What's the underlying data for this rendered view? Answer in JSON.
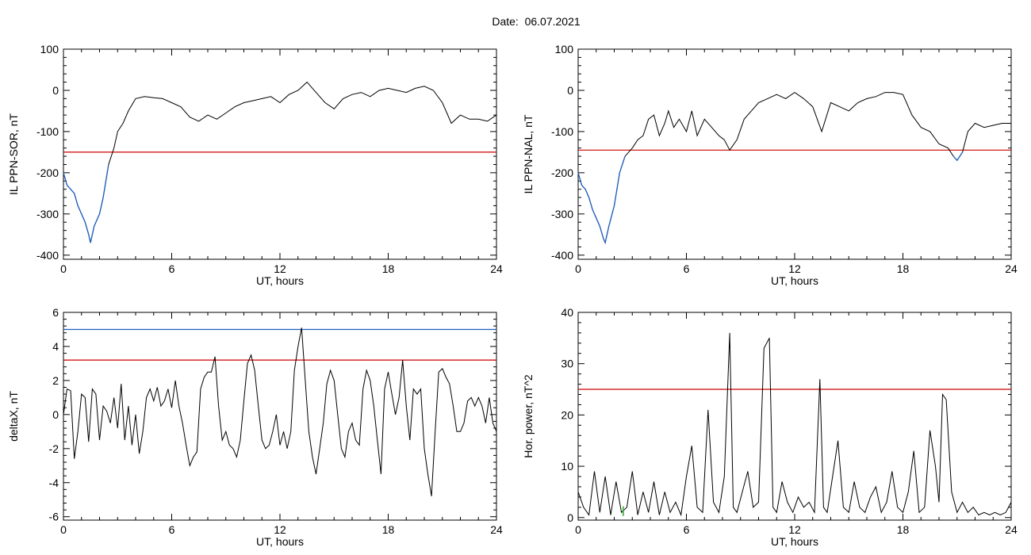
{
  "title": "Date:  06.07.2021",
  "colors": {
    "line": "#000000",
    "threshold_red": "#cc0000",
    "threshold_blue": "#1f5fbf",
    "low_segment": "#1f5fbf",
    "marker_green": "#22aa22"
  },
  "chart_data": [
    {
      "id": "sor",
      "type": "line",
      "xlabel": "UT, hours",
      "ylabel": "IL PPN-SOR, nT",
      "xlim": [
        0,
        24
      ],
      "ylim": [
        -410,
        100
      ],
      "xticks": [
        0,
        6,
        12,
        18,
        24
      ],
      "yticks": [
        100,
        0,
        -100,
        -200,
        -300,
        -400
      ],
      "threshold": -150,
      "series": [
        {
          "values_x": [
            0,
            0.2,
            0.4,
            0.6,
            0.8,
            1.0,
            1.2,
            1.4,
            1.5,
            1.7,
            2.0,
            2.2,
            2.5,
            2.8,
            3.0,
            3.3,
            3.6,
            4.0,
            4.5,
            5.0,
            5.5,
            6.0,
            6.5,
            7.0,
            7.5,
            8.0,
            8.5,
            9.0,
            9.5,
            10.0,
            10.5,
            11.0,
            11.5,
            12.0,
            12.5,
            13.0,
            13.5,
            14.0,
            14.5,
            15.0,
            15.5,
            16.0,
            16.5,
            17.0,
            17.5,
            18.0,
            18.5,
            19.0,
            19.5,
            20.0,
            20.5,
            21.0,
            21.5,
            22.0,
            22.5,
            23.0,
            23.5,
            24.0
          ],
          "values_y": [
            -200,
            -230,
            -240,
            -250,
            -280,
            -300,
            -320,
            -350,
            -370,
            -330,
            -300,
            -260,
            -180,
            -140,
            -100,
            -80,
            -50,
            -20,
            -15,
            -18,
            -20,
            -30,
            -40,
            -65,
            -75,
            -60,
            -70,
            -55,
            -40,
            -30,
            -25,
            -20,
            -15,
            -30,
            -10,
            0,
            20,
            -5,
            -30,
            -45,
            -20,
            -10,
            -5,
            -15,
            0,
            5,
            0,
            -5,
            5,
            10,
            0,
            -30,
            -80,
            -60,
            -70,
            -70,
            -75,
            -60
          ]
        }
      ]
    },
    {
      "id": "nal",
      "type": "line",
      "xlabel": "UT, hours",
      "ylabel": "IL PPN-NAL, nT",
      "xlim": [
        0,
        24
      ],
      "ylim": [
        -410,
        100
      ],
      "xticks": [
        0,
        6,
        12,
        18,
        24
      ],
      "yticks": [
        100,
        0,
        -100,
        -200,
        -300,
        -400
      ],
      "threshold": -145,
      "series": [
        {
          "values_x": [
            0,
            0.2,
            0.4,
            0.6,
            0.8,
            1.0,
            1.2,
            1.4,
            1.5,
            1.7,
            2.0,
            2.3,
            2.6,
            3.0,
            3.3,
            3.6,
            3.9,
            4.2,
            4.5,
            4.8,
            5.0,
            5.3,
            5.6,
            6.0,
            6.3,
            6.6,
            7.0,
            7.4,
            7.8,
            8.1,
            8.4,
            8.8,
            9.2,
            9.6,
            10.0,
            10.5,
            11.0,
            11.5,
            12.0,
            12.5,
            13.0,
            13.5,
            14.0,
            14.5,
            15.0,
            15.5,
            16.0,
            16.5,
            17.0,
            17.5,
            18.0,
            18.5,
            19.0,
            19.5,
            20.0,
            20.5,
            20.8,
            21.0,
            21.3,
            21.6,
            22.0,
            22.5,
            23.0,
            23.5,
            24.0
          ],
          "values_y": [
            -200,
            -230,
            -240,
            -260,
            -290,
            -310,
            -330,
            -360,
            -370,
            -330,
            -280,
            -200,
            -160,
            -140,
            -120,
            -110,
            -70,
            -60,
            -110,
            -80,
            -50,
            -90,
            -70,
            -100,
            -50,
            -110,
            -70,
            -90,
            -110,
            -120,
            -145,
            -120,
            -70,
            -50,
            -30,
            -20,
            -10,
            -20,
            -5,
            -20,
            -40,
            -100,
            -30,
            -40,
            -50,
            -30,
            -20,
            -15,
            -5,
            -5,
            -10,
            -60,
            -90,
            -100,
            -130,
            -140,
            -160,
            -170,
            -150,
            -100,
            -80,
            -90,
            -85,
            -80,
            -80
          ]
        }
      ]
    },
    {
      "id": "deltax",
      "type": "line",
      "xlabel": "UT, hours",
      "ylabel": "deltaX, nT",
      "xlim": [
        0,
        24
      ],
      "ylim": [
        -6.2,
        6
      ],
      "xticks": [
        0,
        6,
        12,
        18,
        24
      ],
      "yticks": [
        6,
        4,
        2,
        0,
        -2,
        -4,
        -6
      ],
      "threshold": 3.2,
      "threshold_upper": 5.0,
      "series": [
        {
          "values_x": [
            0,
            0.2,
            0.4,
            0.6,
            0.8,
            1.0,
            1.2,
            1.4,
            1.6,
            1.8,
            2.0,
            2.2,
            2.4,
            2.6,
            2.8,
            3.0,
            3.2,
            3.4,
            3.6,
            3.8,
            4.0,
            4.2,
            4.4,
            4.6,
            4.8,
            5.0,
            5.2,
            5.4,
            5.6,
            5.8,
            6.0,
            6.2,
            6.4,
            6.6,
            6.8,
            7.0,
            7.2,
            7.4,
            7.6,
            7.8,
            8.0,
            8.2,
            8.4,
            8.6,
            8.8,
            9.0,
            9.2,
            9.4,
            9.6,
            9.8,
            10.0,
            10.2,
            10.4,
            10.6,
            10.8,
            11.0,
            11.2,
            11.4,
            11.6,
            11.8,
            12.0,
            12.2,
            12.4,
            12.6,
            12.8,
            13.0,
            13.2,
            13.4,
            13.6,
            13.8,
            14.0,
            14.2,
            14.4,
            14.6,
            14.8,
            15.0,
            15.2,
            15.4,
            15.6,
            15.8,
            16.0,
            16.2,
            16.4,
            16.6,
            16.8,
            17.0,
            17.2,
            17.4,
            17.6,
            17.8,
            18.0,
            18.2,
            18.4,
            18.6,
            18.8,
            19.0,
            19.2,
            19.4,
            19.6,
            19.8,
            20.0,
            20.2,
            20.4,
            20.6,
            20.8,
            21.0,
            21.2,
            21.4,
            21.6,
            21.8,
            22.0,
            22.2,
            22.4,
            22.6,
            22.8,
            23.0,
            23.2,
            23.4,
            23.6,
            23.8,
            24.0
          ],
          "values_y": [
            0,
            1.5,
            1.4,
            -2.6,
            -1.0,
            1.2,
            1.0,
            -1.6,
            1.5,
            1.2,
            -1.5,
            0.5,
            0.2,
            -0.5,
            1.0,
            -0.8,
            1.8,
            -1.5,
            0.5,
            -1.8,
            0,
            -2.3,
            -1.0,
            1.0,
            1.5,
            0.8,
            1.6,
            0.5,
            0.8,
            1.5,
            0.4,
            2.0,
            0.5,
            -0.5,
            -1.8,
            -3.0,
            -2.5,
            -2.2,
            1.5,
            2.2,
            2.5,
            2.5,
            3.4,
            0.5,
            -1.5,
            -1.0,
            -1.8,
            -2.0,
            -2.5,
            -1.5,
            0.8,
            3.0,
            3.5,
            2.6,
            0.5,
            -1.5,
            -2.0,
            -1.8,
            -1.0,
            0,
            -1.8,
            -1.0,
            -2.0,
            -1.0,
            2.6,
            4.0,
            5.1,
            2.0,
            -1.0,
            -2.5,
            -3.5,
            -2.0,
            -0.5,
            1.8,
            2.6,
            2.0,
            0,
            -2.0,
            -2.5,
            -1.0,
            -0.5,
            -1.5,
            -1.8,
            1.5,
            2.6,
            2.0,
            0.5,
            -1.5,
            -3.5,
            1.5,
            2.5,
            1.2,
            0,
            1.0,
            3.2,
            0.5,
            -1.5,
            1.5,
            1.2,
            1.5,
            -2.0,
            -3.5,
            -4.8,
            -1.0,
            2.5,
            2.7,
            2.2,
            1.8,
            0.5,
            -1.0,
            -1.0,
            -0.5,
            0.8,
            1.0,
            0.5,
            1.0,
            0.5,
            -0.5,
            1.0,
            -0.5,
            -1.0
          ]
        }
      ]
    },
    {
      "id": "power",
      "type": "line",
      "xlabel": "UT, hours",
      "ylabel": "Hor. power, nT^2",
      "xlim": [
        0,
        24
      ],
      "ylim": [
        -0.5,
        40
      ],
      "xticks": [
        0,
        6,
        12,
        18,
        24
      ],
      "yticks": [
        40,
        30,
        20,
        10,
        0
      ],
      "threshold": 25,
      "series": [
        {
          "values_x": [
            0,
            0.3,
            0.6,
            0.9,
            1.2,
            1.5,
            1.8,
            2.1,
            2.4,
            2.7,
            3.0,
            3.3,
            3.6,
            3.9,
            4.2,
            4.5,
            4.8,
            5.1,
            5.4,
            5.7,
            6.0,
            6.3,
            6.6,
            6.9,
            7.2,
            7.5,
            7.8,
            8.1,
            8.4,
            8.6,
            8.8,
            9.1,
            9.4,
            9.7,
            10.0,
            10.3,
            10.6,
            10.8,
            11.0,
            11.3,
            11.6,
            11.9,
            12.2,
            12.5,
            12.8,
            13.1,
            13.4,
            13.6,
            13.8,
            14.1,
            14.4,
            14.7,
            15.0,
            15.3,
            15.6,
            15.9,
            16.2,
            16.5,
            16.8,
            17.1,
            17.4,
            17.7,
            18.0,
            18.3,
            18.6,
            18.9,
            19.2,
            19.5,
            19.8,
            20.0,
            20.2,
            20.4,
            20.7,
            21.0,
            21.3,
            21.6,
            21.9,
            22.2,
            22.5,
            22.8,
            23.1,
            23.4,
            23.7,
            24.0
          ],
          "values_y": [
            5,
            2,
            0.5,
            9,
            1,
            8,
            0.5,
            7,
            1,
            2,
            9,
            0.5,
            5,
            1,
            7,
            0.5,
            5,
            1,
            3,
            0.5,
            8,
            14,
            2,
            1,
            21,
            3,
            1,
            8,
            36,
            2,
            1,
            5,
            9,
            2,
            3,
            33,
            35,
            2,
            1,
            7,
            3,
            1,
            4,
            2,
            3,
            1,
            27,
            2,
            1,
            8,
            15,
            2,
            1,
            7,
            2,
            1,
            4,
            6,
            1,
            3,
            9,
            2,
            1,
            5,
            13,
            1,
            2,
            17,
            10,
            3,
            24,
            23,
            5,
            1,
            3,
            1,
            2,
            0.5,
            1,
            0.5,
            1,
            0.5,
            1,
            3
          ]
        }
      ]
    }
  ]
}
